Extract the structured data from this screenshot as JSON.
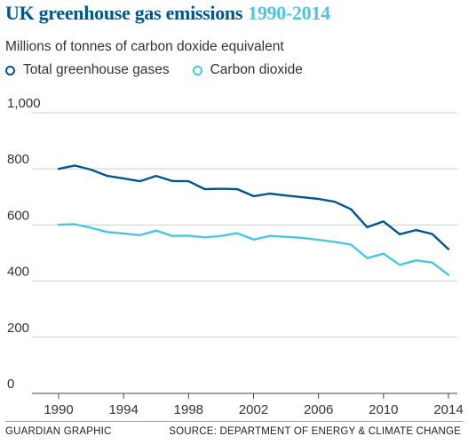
{
  "header": {
    "title_main": "UK greenhouse gas emissions",
    "title_years": "1990-2014",
    "subtitle": "Millions of tonnes of carbon doxide equivalent"
  },
  "legend": {
    "items": [
      {
        "label": "Total greenhouse gases",
        "color": "#005689"
      },
      {
        "label": "Carbon dioxide",
        "color": "#4bc6df"
      }
    ]
  },
  "footer": {
    "credit": "GUARDIAN GRAPHIC",
    "source": "SOURCE: DEPARTMENT OF ENERGY & CLIMATE CHANGE"
  },
  "chart_data": {
    "type": "line",
    "title": "UK greenhouse gas emissions 1990-2014",
    "ylabel": "Millions of tonnes of carbon doxide equivalent",
    "xlabel": "",
    "xlim": [
      1990,
      2014
    ],
    "ylim": [
      0,
      1000
    ],
    "x_ticks": [
      "1990",
      "1994",
      "1998",
      "2002",
      "2006",
      "2010",
      "2014"
    ],
    "y_ticks": [
      "0",
      "200",
      "400",
      "600",
      "800",
      "1,000"
    ],
    "grid": "horizontal",
    "legend_position": "top-left",
    "x": [
      1990,
      1991,
      1992,
      1993,
      1994,
      1995,
      1996,
      1997,
      1998,
      1999,
      2000,
      2001,
      2002,
      2003,
      2004,
      2005,
      2006,
      2007,
      2008,
      2009,
      2010,
      2011,
      2012,
      2013,
      2014
    ],
    "series": [
      {
        "name": "Total greenhouse gases",
        "color": "#005689",
        "values": [
          800,
          812,
          797,
          775,
          766,
          756,
          775,
          757,
          756,
          728,
          729,
          728,
          703,
          712,
          705,
          699,
          693,
          683,
          656,
          592,
          613,
          567,
          582,
          568,
          514
        ]
      },
      {
        "name": "Carbon dioxide",
        "color": "#4bc6df",
        "values": [
          601,
          603,
          590,
          575,
          570,
          564,
          580,
          561,
          562,
          556,
          561,
          571,
          548,
          561,
          558,
          554,
          547,
          540,
          530,
          482,
          498,
          458,
          474,
          466,
          422
        ]
      }
    ]
  }
}
